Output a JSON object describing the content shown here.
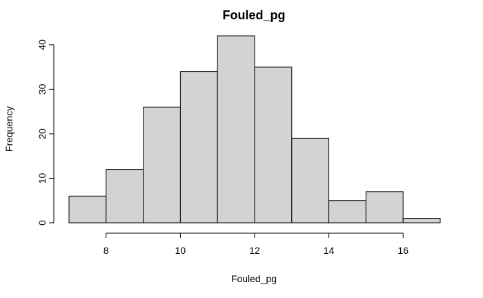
{
  "chart_data": {
    "type": "bar",
    "title": "Fouled_pg",
    "xlabel": "Fouled_pg",
    "ylabel": "Frequency",
    "bin_edges": [
      7,
      8,
      9,
      10,
      11,
      12,
      13,
      14,
      15,
      16,
      17
    ],
    "values": [
      6,
      12,
      26,
      34,
      42,
      35,
      19,
      5,
      7,
      1
    ],
    "xlim": [
      7,
      17
    ],
    "ylim": [
      0,
      42
    ],
    "x_ticks": [
      8,
      10,
      12,
      14,
      16
    ],
    "y_ticks": [
      0,
      10,
      20,
      30,
      40
    ],
    "bar_color": "#d3d3d3",
    "grid": false
  }
}
